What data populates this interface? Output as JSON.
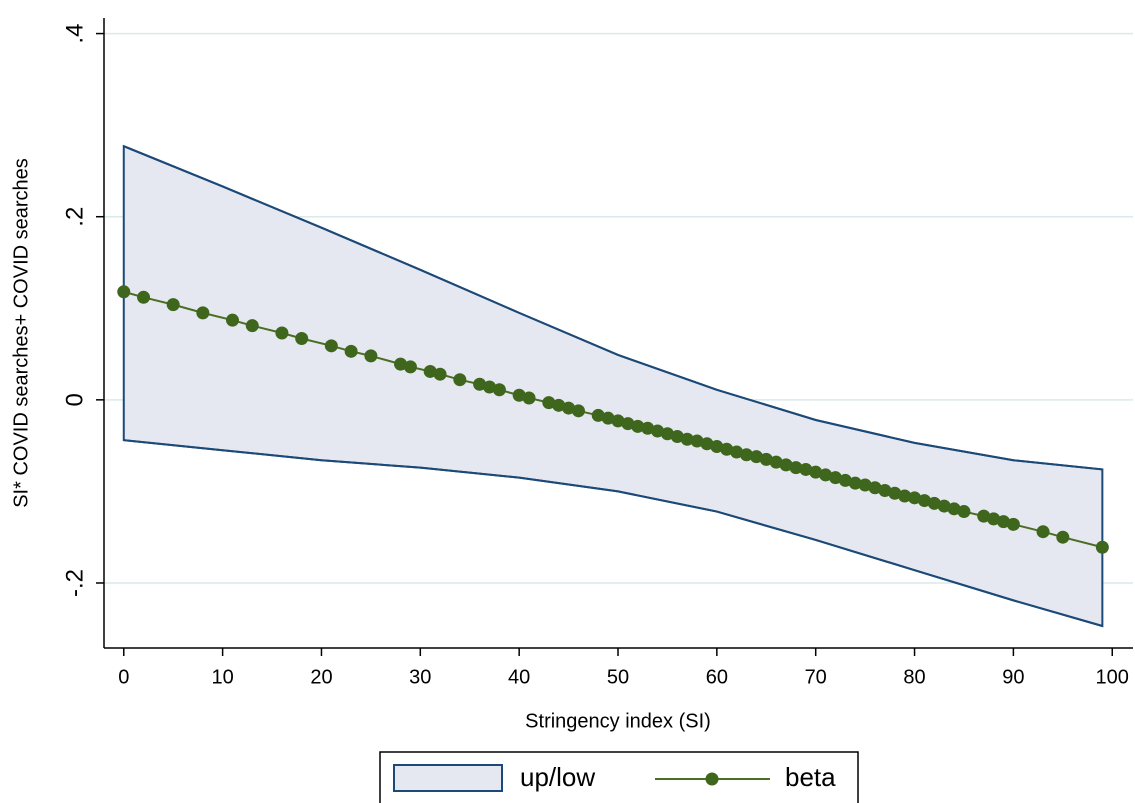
{
  "chart_data": {
    "type": "band_line",
    "x_label": "Stringency index (SI)",
    "y_label": "SI* COVID searches+ COVID searches",
    "xlim": [
      -2,
      102.1
    ],
    "ylim": [
      -0.271,
      0.417
    ],
    "xticks": [
      0,
      10,
      20,
      30,
      40,
      50,
      60,
      70,
      80,
      90,
      100
    ],
    "yticks": [
      {
        "value": -0.2,
        "label": "-.2"
      },
      0,
      {
        "value": 0.2,
        "label": ".2"
      },
      {
        "value": 0.4,
        "label": ".4"
      }
    ],
    "grid": true,
    "legend": "bottom",
    "band": {
      "name": "up/low",
      "color": "#1c4a78",
      "fill": "#e6e8f1",
      "x": [
        0,
        10,
        20,
        30,
        40,
        50,
        60,
        70,
        80,
        90,
        99
      ],
      "upper": [
        0.277,
        0.233,
        0.188,
        0.142,
        0.095,
        0.049,
        0.011,
        -0.022,
        -0.047,
        -0.066,
        -0.076
      ],
      "lower": [
        -0.044,
        -0.055,
        -0.066,
        -0.074,
        -0.085,
        -0.1,
        -0.122,
        -0.153,
        -0.186,
        -0.219,
        -0.247
      ]
    },
    "series": [
      {
        "name": "beta",
        "color": "#4a6e22",
        "marker_color": "#3e661c",
        "x": [
          0,
          2,
          5,
          8,
          11,
          13,
          16,
          18,
          21,
          23,
          25,
          28,
          29,
          31,
          32,
          34,
          36,
          37,
          38,
          40,
          41,
          43,
          44,
          45,
          46,
          48,
          49,
          50,
          51,
          52,
          53,
          54,
          55,
          56,
          57,
          58,
          59,
          60,
          61,
          62,
          63,
          64,
          65,
          66,
          67,
          68,
          69,
          70,
          71,
          72,
          73,
          74,
          75,
          76,
          77,
          78,
          79,
          80,
          81,
          82,
          83,
          84,
          85,
          87,
          88,
          89,
          90,
          93,
          95,
          99
        ],
        "values": [
          0.118,
          0.112,
          0.104,
          0.095,
          0.087,
          0.081,
          0.073,
          0.067,
          0.059,
          0.053,
          0.048,
          0.039,
          0.036,
          0.031,
          0.028,
          0.022,
          0.017,
          0.014,
          0.011,
          0.005,
          0.002,
          -0.003,
          -0.006,
          -0.009,
          -0.012,
          -0.017,
          -0.02,
          -0.023,
          -0.026,
          -0.029,
          -0.031,
          -0.034,
          -0.037,
          -0.04,
          -0.043,
          -0.045,
          -0.048,
          -0.051,
          -0.054,
          -0.057,
          -0.06,
          -0.062,
          -0.065,
          -0.068,
          -0.071,
          -0.074,
          -0.076,
          -0.079,
          -0.082,
          -0.085,
          -0.088,
          -0.091,
          -0.093,
          -0.096,
          -0.099,
          -0.102,
          -0.105,
          -0.107,
          -0.11,
          -0.113,
          -0.116,
          -0.119,
          -0.122,
          -0.127,
          -0.13,
          -0.133,
          -0.136,
          -0.144,
          -0.15,
          -0.161
        ]
      }
    ]
  }
}
